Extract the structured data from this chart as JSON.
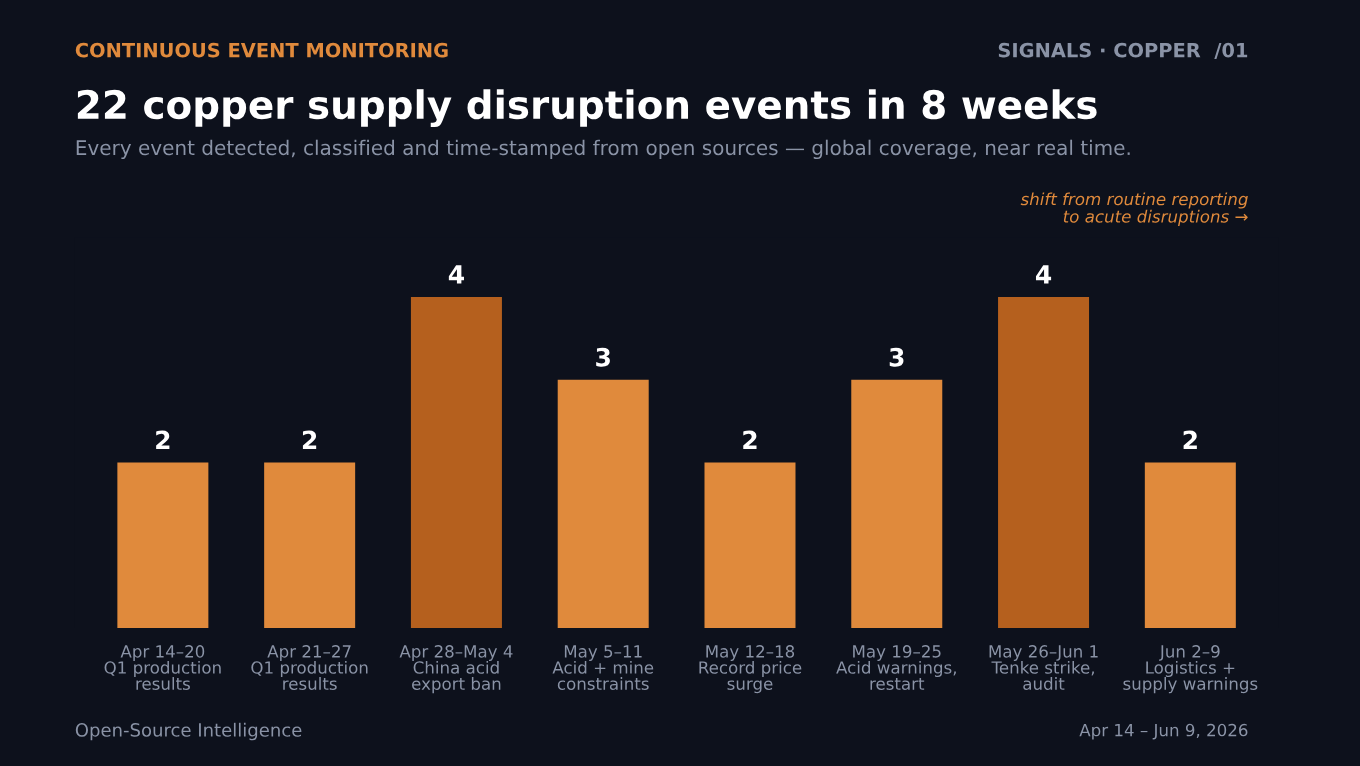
{
  "chart_data": {
    "type": "bar",
    "title": "22 copper supply disruption events in 8 weeks",
    "subtitle": "Every event detected, classified and time-stamped from open sources — global coverage, near real time.",
    "categories": [
      "Apr 14–20\nQ1 production\nresults",
      "Apr 21–27\nQ1 production\nresults",
      "Apr 28–May 4\nChina acid\nexport ban",
      "May 5–11\nAcid + mine\nconstraints",
      "May 12–18\nRecord price\nsurge",
      "May 19–25\nAcid warnings,\nrestart",
      "May 26–Jun 1\nTenke strike,\naudit",
      "Jun 2–9\nLogistics +\nsupply warnings"
    ],
    "values": [
      2,
      2,
      4,
      3,
      2,
      3,
      4,
      2
    ],
    "colors": [
      "#e08a3c",
      "#e08a3c",
      "#b5601e",
      "#e08a3c",
      "#e08a3c",
      "#e08a3c",
      "#b5601e",
      "#e08a3c"
    ],
    "data_labels": true,
    "grid": false,
    "legend": false,
    "annotations": [
      "CONTINUOUS EVENT MONITORING",
      "SIGNALS · COPPER  /01",
      "shift from routine reporting\nto acute disruptions →",
      "Open-Source Intelligence",
      "Apr 14 – Jun 9, 2026"
    ]
  }
}
